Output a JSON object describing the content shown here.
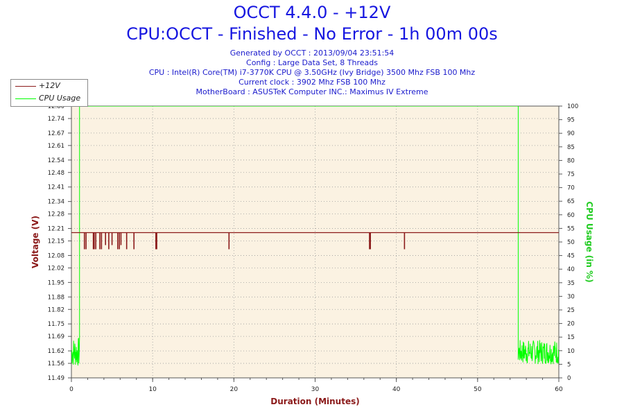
{
  "title": "OCCT 4.4.0 - +12V",
  "subtitle": "CPU:OCCT - Finished - No Error - 1h 00m 00s",
  "info_lines": [
    "Generated by OCCT : 2013/09/04 23:51:54",
    "Config : Large Data Set, 8 Threads",
    "CPU : Intel(R) Core(TM) i7-3770K CPU @ 3.50GHz (Ivy Bridge) 3500 Mhz FSB 100 Mhz",
    "Current clock : 3902 Mhz FSB 100 Mhz",
    "MotherBoard : ASUSTeK Computer INC.: Maximus IV Extreme"
  ],
  "colors": {
    "title": "#1616e0",
    "info": "#1a1acc",
    "plot_bg": "#fbf2e2",
    "grid": "#9a9a9a",
    "voltage": "#8b1a1a",
    "cpu": "#00ff00",
    "y_left_label": "#8b1a1a",
    "y_right_label": "#22cc22",
    "x_label": "#8b1a1a"
  },
  "chart_data": {
    "type": "line",
    "xlabel": "Duration (Minutes)",
    "ylabel_left": "Voltage (V)",
    "ylabel_right": "CPU Usage (in %)",
    "xlim": [
      0,
      60
    ],
    "ylim_left": [
      11.49,
      12.8
    ],
    "ylim_right": [
      0,
      100
    ],
    "x_ticks": [
      0,
      10,
      20,
      30,
      40,
      50,
      60
    ],
    "x_tick_labels": [
      "0",
      "10",
      "20",
      "30",
      "40",
      "50",
      "60"
    ],
    "y_left_ticks": [
      11.49,
      11.56,
      11.62,
      11.69,
      11.75,
      11.82,
      11.88,
      11.95,
      12.02,
      12.08,
      12.15,
      12.21,
      12.28,
      12.34,
      12.41,
      12.48,
      12.54,
      12.61,
      12.67,
      12.74,
      12.8
    ],
    "y_left_tick_labels": [
      "11.49",
      "11.56",
      "11.62",
      "11.69",
      "11.75",
      "11.82",
      "11.88",
      "11.95",
      "12.02",
      "12.08",
      "12.15",
      "12.21",
      "12.28",
      "12.34",
      "12.41",
      "12.48",
      "12.54",
      "12.61",
      "12.67",
      "12.74",
      "12.80"
    ],
    "y_right_ticks": [
      0,
      5,
      10,
      15,
      20,
      25,
      30,
      35,
      40,
      45,
      50,
      55,
      60,
      65,
      70,
      75,
      80,
      85,
      90,
      95,
      100
    ],
    "y_right_tick_labels": [
      "0",
      "5",
      "10",
      "15",
      "20",
      "25",
      "30",
      "35",
      "40",
      "45",
      "50",
      "55",
      "60",
      "65",
      "70",
      "75",
      "80",
      "85",
      "90",
      "95",
      "100"
    ],
    "grid": true,
    "legend": {
      "position": "top-left",
      "entries": [
        "+12V",
        "CPU Usage"
      ]
    },
    "series": [
      {
        "name": "+12V",
        "axis": "left",
        "baseline": 12.19,
        "dips": [
          [
            1.6,
            12.11
          ],
          [
            1.8,
            12.11
          ],
          [
            2.7,
            12.11
          ],
          [
            2.8,
            12.11
          ],
          [
            3.0,
            12.11
          ],
          [
            3.5,
            12.11
          ],
          [
            3.7,
            12.11
          ],
          [
            4.2,
            12.13
          ],
          [
            4.6,
            12.11
          ],
          [
            5.0,
            12.13
          ],
          [
            5.7,
            12.11
          ],
          [
            5.9,
            12.11
          ],
          [
            6.1,
            12.13
          ],
          [
            6.8,
            12.11
          ],
          [
            7.7,
            12.11
          ],
          [
            10.4,
            12.11
          ],
          [
            10.5,
            12.11
          ],
          [
            19.4,
            12.11
          ],
          [
            36.7,
            12.11
          ],
          [
            36.8,
            12.11
          ],
          [
            41.0,
            12.11
          ]
        ]
      },
      {
        "name": "CPU Usage",
        "axis": "right",
        "segments": [
          {
            "x_start": 0.0,
            "x_end": 1.0,
            "type": "noise",
            "min": 4,
            "max": 15
          },
          {
            "x_start": 1.0,
            "x_end": 55.0,
            "type": "constant",
            "value": 100
          },
          {
            "x_start": 55.0,
            "x_end": 60.0,
            "type": "noise",
            "min": 5,
            "max": 14
          }
        ]
      }
    ]
  }
}
